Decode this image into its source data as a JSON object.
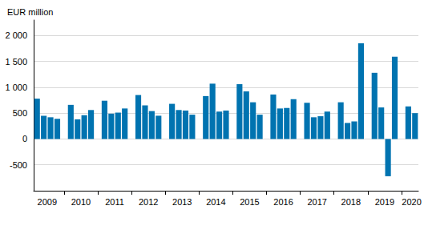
{
  "chart_data": {
    "type": "bar",
    "title": "EUR million",
    "categories": [
      null,
      "2009",
      null,
      null,
      null,
      null,
      "2010",
      null,
      null,
      null,
      null,
      "2011",
      null,
      null,
      null,
      null,
      "2012",
      null,
      null,
      null,
      null,
      "2013",
      null,
      null,
      null,
      null,
      "2014",
      null,
      null,
      null,
      null,
      "2015",
      null,
      null,
      null,
      null,
      "2016",
      null,
      null,
      null,
      null,
      "2017",
      null,
      null,
      null,
      null,
      "2018",
      null,
      null,
      null,
      null,
      "2019",
      null,
      null,
      null,
      "2020",
      null
    ],
    "values": [
      780,
      450,
      420,
      390,
      null,
      660,
      380,
      460,
      560,
      null,
      740,
      490,
      510,
      590,
      null,
      850,
      650,
      540,
      450,
      null,
      680,
      560,
      550,
      470,
      null,
      830,
      1070,
      530,
      550,
      null,
      1060,
      920,
      710,
      470,
      null,
      860,
      590,
      600,
      770,
      null,
      700,
      420,
      440,
      530,
      null,
      710,
      310,
      340,
      1850,
      null,
      1280,
      610,
      -720,
      1590,
      null,
      630,
      500
    ],
    "color": "#0073b0",
    "ylim": [
      -1000,
      2300
    ],
    "yticks": [
      -500,
      0,
      500,
      {
        "value": 1000,
        "label": "1 000"
      },
      {
        "value": 1500,
        "label": "1 500"
      },
      {
        "value": 2000,
        "label": "2 000"
      }
    ],
    "grid": true
  }
}
